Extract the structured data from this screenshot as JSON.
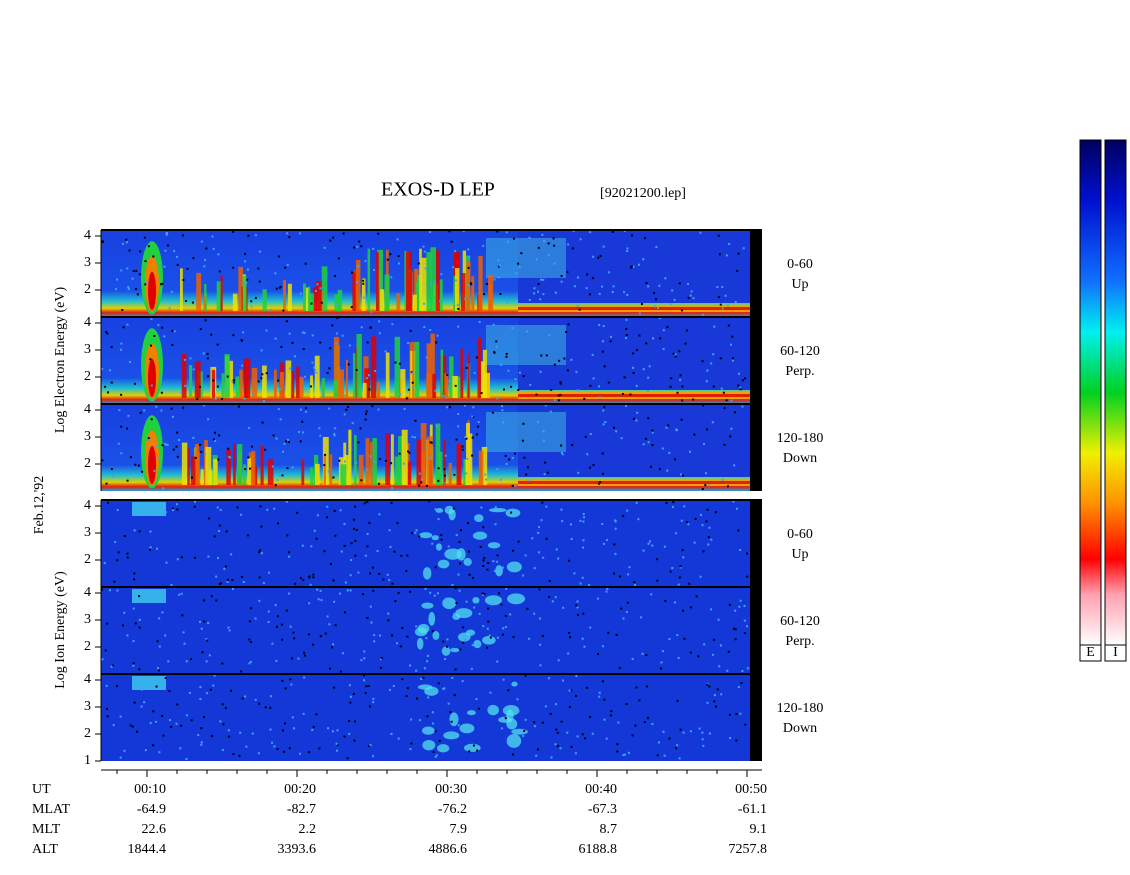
{
  "title": "EXOS-D LEP",
  "file": "[92021200.lep]",
  "date": "Feb.12,'92",
  "electron_axis_label": "Log Electron Energy (eV)",
  "ion_axis_label": "Log Ion Energy (eV)",
  "electron_panels": [
    {
      "pitch": "0-60",
      "direction": "Up",
      "ticks": [
        "4",
        "3",
        "2"
      ]
    },
    {
      "pitch": "60-120",
      "direction": "Perp.",
      "ticks": [
        "4",
        "3",
        "2"
      ]
    },
    {
      "pitch": "120-180",
      "direction": "Down",
      "ticks": [
        "4",
        "3",
        "2"
      ]
    }
  ],
  "ion_panels": [
    {
      "pitch": "0-60",
      "direction": "Up",
      "ticks": [
        "4",
        "3",
        "2"
      ]
    },
    {
      "pitch": "60-120",
      "direction": "Perp.",
      "ticks": [
        "4",
        "3",
        "2"
      ]
    },
    {
      "pitch": "120-180",
      "direction": "Down",
      "ticks": [
        "4",
        "3",
        "2",
        "1"
      ]
    }
  ],
  "time_rows": [
    {
      "label": "UT",
      "values": [
        "00:10",
        "00:20",
        "00:30",
        "00:40",
        "00:50"
      ]
    },
    {
      "label": "MLAT",
      "values": [
        "-64.9",
        "-82.7",
        "-76.2",
        "-67.3",
        "-61.1"
      ]
    },
    {
      "label": "MLT",
      "values": [
        "22.6",
        "2.2",
        "7.9",
        "8.7",
        "9.1"
      ]
    },
    {
      "label": "ALT",
      "values": [
        "1844.4",
        "3393.6",
        "4886.6",
        "6188.8",
        "7257.8"
      ]
    }
  ],
  "color_bars": [
    "E",
    "I"
  ]
}
